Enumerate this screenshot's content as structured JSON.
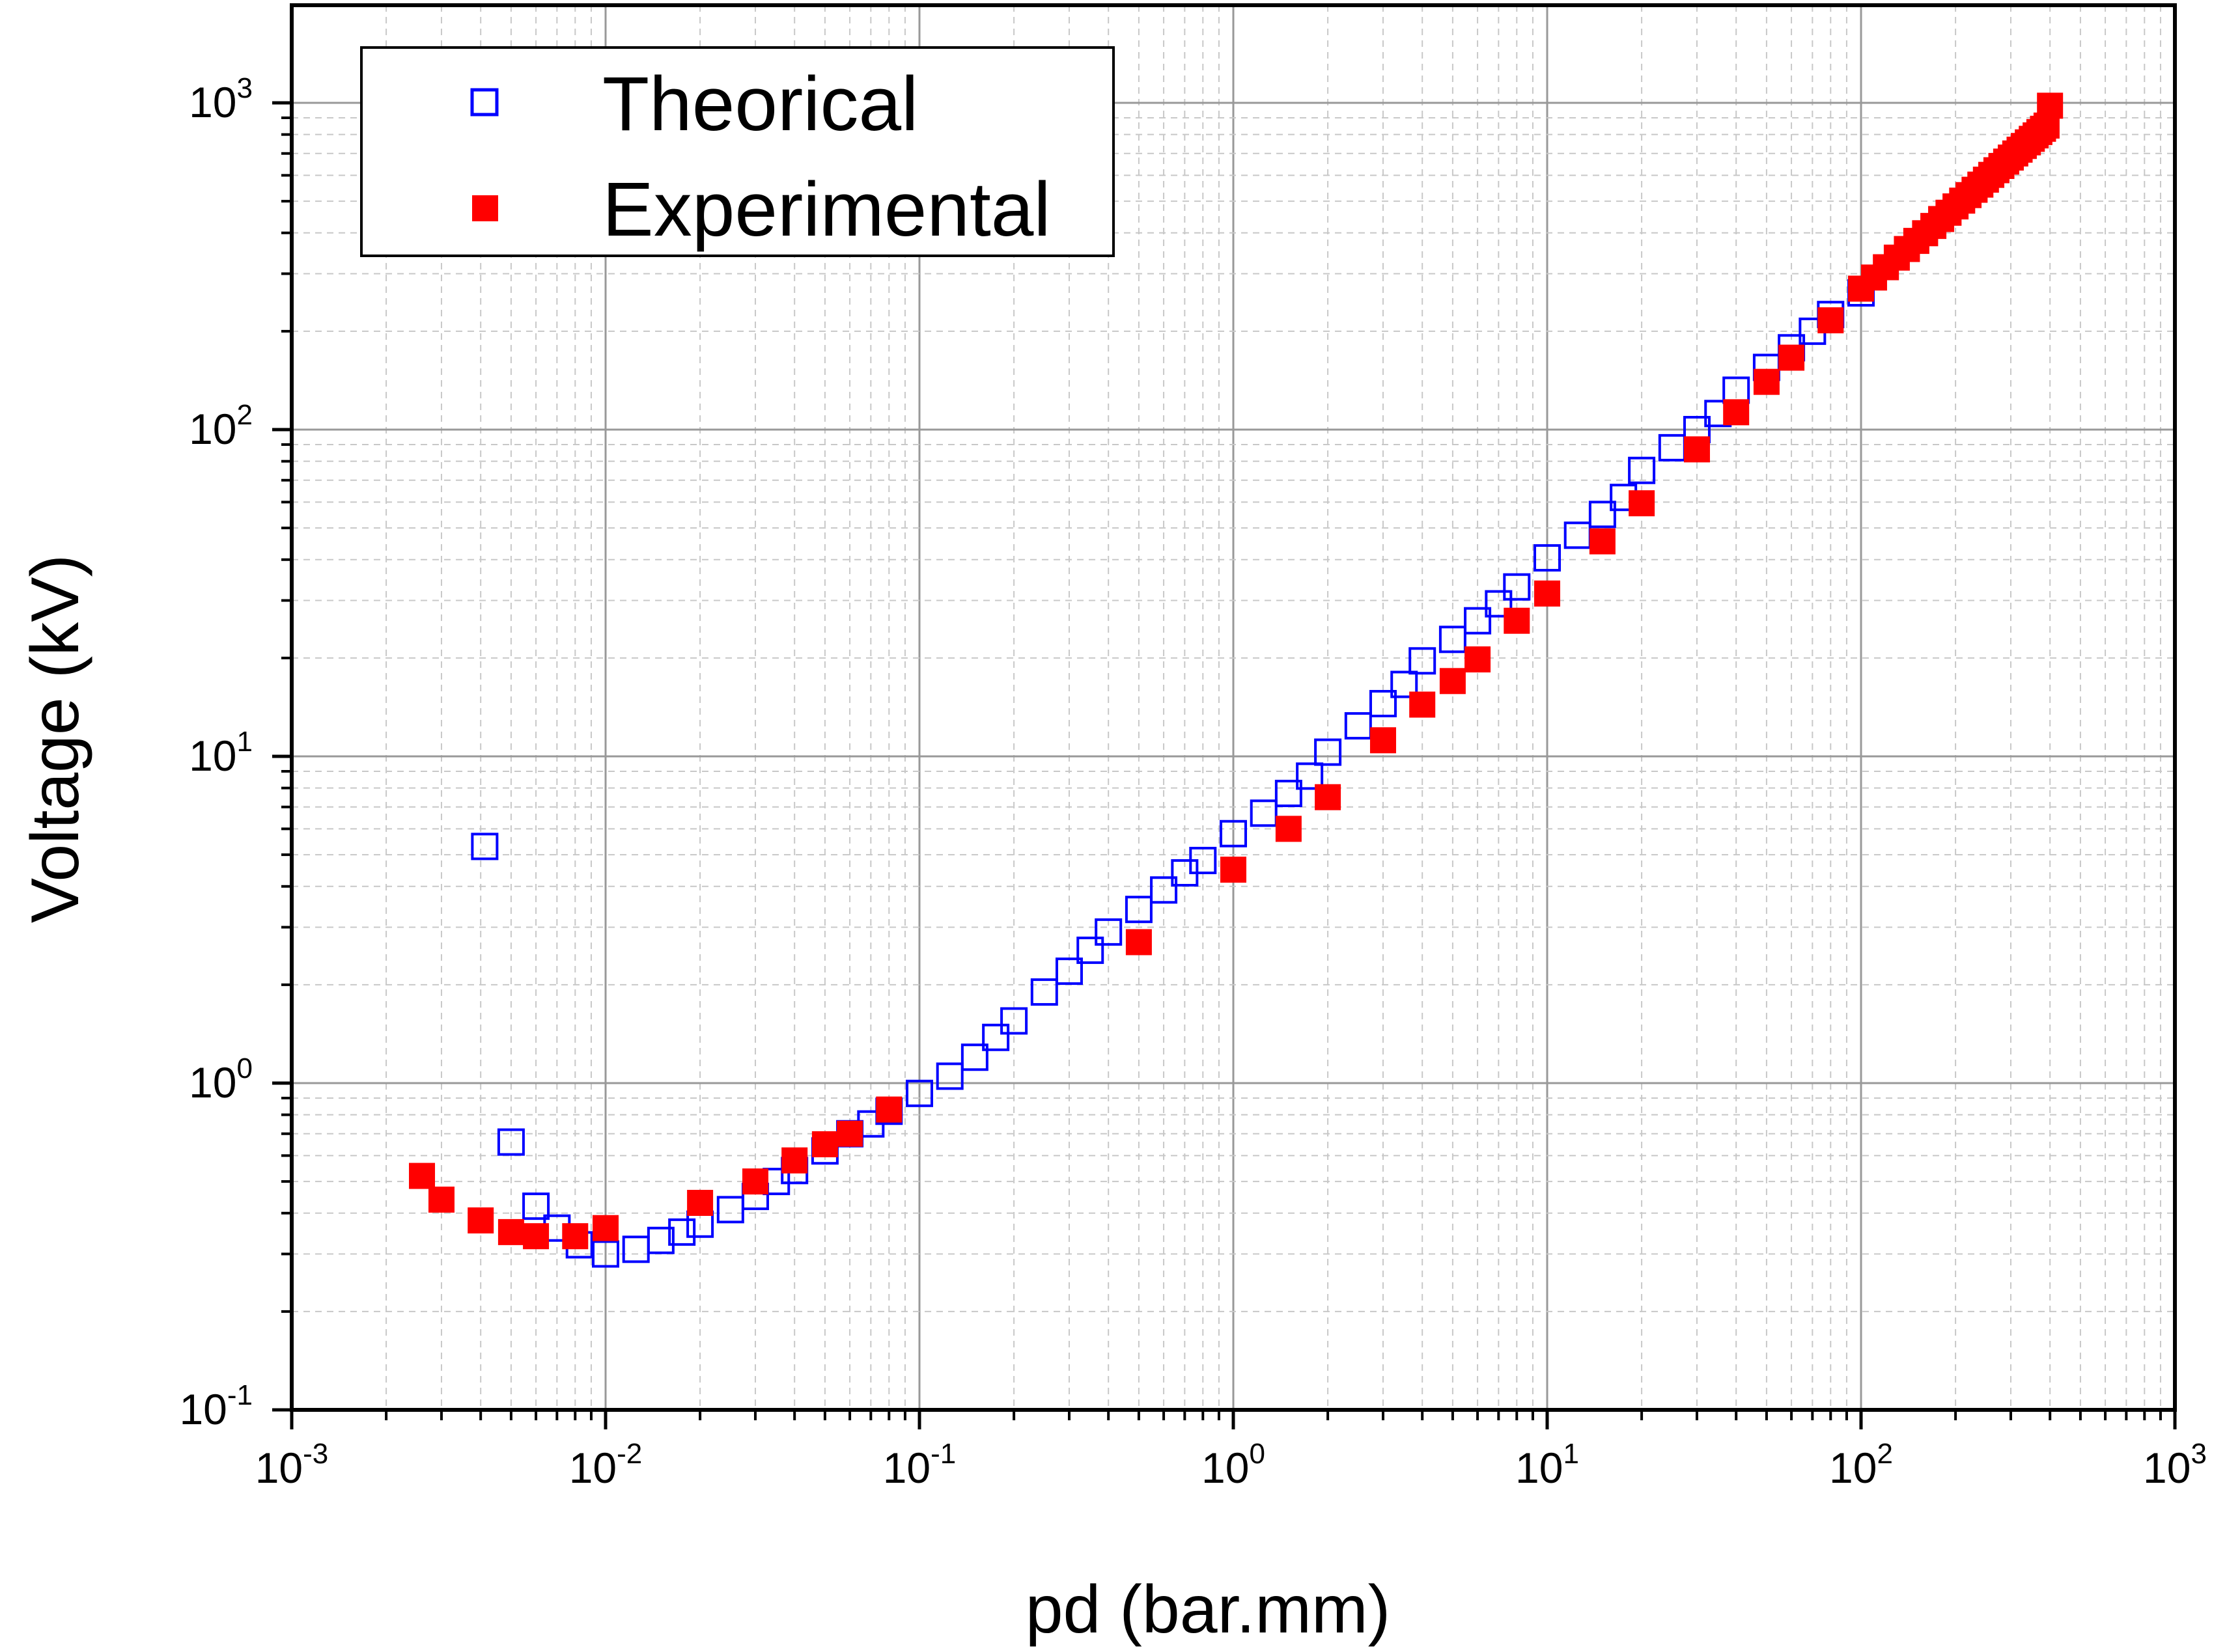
{
  "chart_data": {
    "type": "scatter",
    "xlabel": "pd (bar.mm)",
    "ylabel": "Voltage (kV)",
    "x_scale": "log",
    "y_scale": "log",
    "xlim": [
      0.001,
      1000
    ],
    "ylim": [
      0.1,
      2000
    ],
    "grid": true,
    "legend_position": "top-left",
    "x_ticks": [
      {
        "base": "10",
        "exp": "-3"
      },
      {
        "base": "10",
        "exp": "-2"
      },
      {
        "base": "10",
        "exp": "-1"
      },
      {
        "base": "10",
        "exp": "0"
      },
      {
        "base": "10",
        "exp": "1"
      },
      {
        "base": "10",
        "exp": "2"
      },
      {
        "base": "10",
        "exp": "3"
      }
    ],
    "y_ticks": [
      {
        "base": "10",
        "exp": "-1"
      },
      {
        "base": "10",
        "exp": "0"
      },
      {
        "base": "10",
        "exp": "1"
      },
      {
        "base": "10",
        "exp": "2"
      },
      {
        "base": "10",
        "exp": "3"
      }
    ],
    "series": [
      {
        "name": "Theorical",
        "marker": "open-square",
        "color": "#0000ff",
        "x": [
          0.00412,
          0.005,
          0.006,
          0.007,
          0.00825,
          0.01,
          0.0125,
          0.015,
          0.0175,
          0.02,
          0.025,
          0.03,
          0.035,
          0.04,
          0.05,
          0.06,
          0.07,
          0.08,
          0.1,
          0.125,
          0.15,
          0.175,
          0.2,
          0.25,
          0.3,
          0.35,
          0.4,
          0.5,
          0.6,
          0.7,
          0.8,
          1.0,
          1.25,
          1.5,
          1.75,
          2.0,
          2.5,
          3.0,
          3.5,
          4.0,
          5.0,
          6.0,
          7.0,
          8.0,
          10.0,
          12.5,
          15.0,
          17.5,
          20.0,
          25.0,
          30.0,
          35.0,
          40.0,
          50.0,
          60.0,
          70.0,
          80.0,
          100.0
        ],
        "y": [
          5.3,
          0.66,
          0.42,
          0.36,
          0.32,
          0.3,
          0.31,
          0.33,
          0.35,
          0.37,
          0.41,
          0.45,
          0.5,
          0.54,
          0.62,
          0.7,
          0.75,
          0.82,
          0.93,
          1.05,
          1.2,
          1.38,
          1.55,
          1.9,
          2.2,
          2.55,
          2.9,
          3.4,
          3.9,
          4.4,
          4.8,
          5.8,
          6.7,
          7.7,
          8.7,
          10.3,
          12.4,
          14.5,
          16.6,
          19.6,
          22.8,
          26.0,
          29.3,
          33.0,
          40.5,
          47.5,
          55.0,
          62.0,
          75.0,
          88.0,
          100.0,
          112.0,
          132.0,
          155.0,
          178.0,
          200.0,
          225.0,
          262.0
        ]
      },
      {
        "name": "Experimental",
        "marker": "filled-square",
        "color": "#ff0000",
        "x": [
          0.0026,
          0.003,
          0.004,
          0.005,
          0.006,
          0.008,
          0.01,
          0.02,
          0.03,
          0.04,
          0.05,
          0.06,
          0.08,
          0.5,
          1.0,
          1.5,
          2.0,
          3.0,
          4.0,
          5.0,
          6.0,
          8.0,
          10.0,
          15.0,
          20.0,
          30.0,
          40.0,
          50.0,
          60.0,
          80.0,
          100,
          110,
          120,
          130,
          140,
          150,
          160,
          170,
          180,
          190,
          200,
          210,
          220,
          230,
          240,
          250,
          260,
          270,
          280,
          290,
          300,
          310,
          320,
          330,
          340,
          350,
          360,
          370,
          380,
          390,
          400
        ],
        "y": [
          0.52,
          0.44,
          0.38,
          0.35,
          0.34,
          0.34,
          0.36,
          0.43,
          0.5,
          0.58,
          0.65,
          0.7,
          0.83,
          2.7,
          4.5,
          6.0,
          7.5,
          11.2,
          14.4,
          17.0,
          19.8,
          26.0,
          31.5,
          45.5,
          59.5,
          87.0,
          113.0,
          140.0,
          166.0,
          216.0,
          270,
          292,
          314,
          336,
          357,
          378,
          399,
          420,
          441,
          461,
          482,
          502,
          522,
          542,
          562,
          582,
          602,
          622,
          641,
          661,
          680,
          700,
          719,
          738,
          757,
          776,
          795,
          814,
          833,
          852,
          980
        ]
      }
    ]
  }
}
